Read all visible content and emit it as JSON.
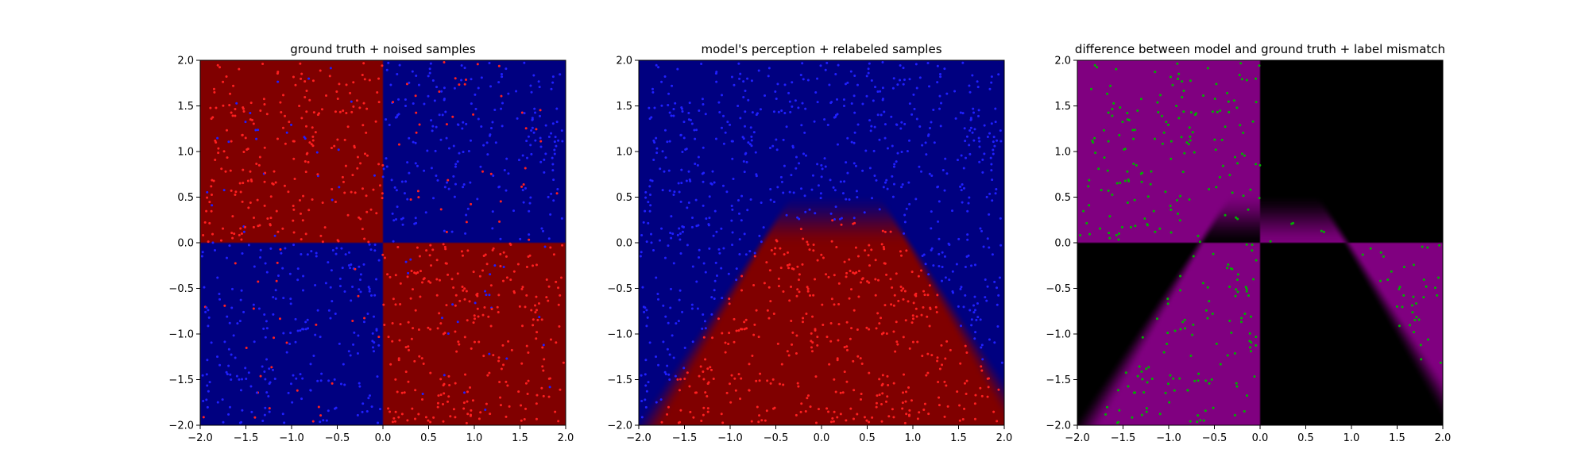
{
  "chart_data": [
    {
      "type": "scatter",
      "title": "ground truth + noised samples",
      "xlim": [
        -2.0,
        2.0
      ],
      "ylim": [
        -2.0,
        2.0
      ],
      "x_ticks": [
        "−2.0",
        "−1.5",
        "−1.0",
        "−0.5",
        "0.0",
        "0.5",
        "1.0",
        "1.5",
        "2.0"
      ],
      "y_ticks": [
        "−2.0",
        "−1.5",
        "−1.0",
        "−0.5",
        "0.0",
        "0.5",
        "1.0",
        "1.5",
        "2.0"
      ],
      "background": {
        "kind": "xor-quadrants",
        "same_sign_color": "#000080",
        "opposite_sign_color": "#800000"
      },
      "point_colors": [
        "#ff2020",
        "#2020ff"
      ]
    },
    {
      "type": "scatter",
      "title": "model's perception + relabeled samples",
      "xlim": [
        -2.0,
        2.0
      ],
      "ylim": [
        -2.0,
        2.0
      ],
      "x_ticks": [
        "−2.0",
        "−1.5",
        "−1.0",
        "−0.5",
        "0.0",
        "0.5",
        "1.0",
        "1.5",
        "2.0"
      ],
      "y_ticks": [
        "−2.0",
        "−1.5",
        "−1.0",
        "−0.5",
        "0.0",
        "0.5",
        "1.0",
        "1.5",
        "2.0"
      ],
      "background": {
        "kind": "model-wedge",
        "outside_color": "#000080",
        "inside_color": "#800000"
      },
      "point_colors": [
        "#ff2020",
        "#2020ff"
      ]
    },
    {
      "type": "scatter",
      "title": "difference between model and ground truth + label mismatch",
      "xlim": [
        -2.0,
        2.0
      ],
      "ylim": [
        -2.0,
        2.0
      ],
      "x_ticks": [
        "−2.0",
        "−1.5",
        "−1.0",
        "−0.5",
        "0.0",
        "0.5",
        "1.0",
        "1.5",
        "2.0"
      ],
      "y_ticks": [
        "−2.0",
        "−1.5",
        "−1.0",
        "−0.5",
        "0.0",
        "0.5",
        "1.0",
        "1.5",
        "2.0"
      ],
      "background": {
        "kind": "difference",
        "match_color": "#000000",
        "mismatch_color": "#800080"
      },
      "point_colors": [
        "#00b000"
      ]
    }
  ]
}
